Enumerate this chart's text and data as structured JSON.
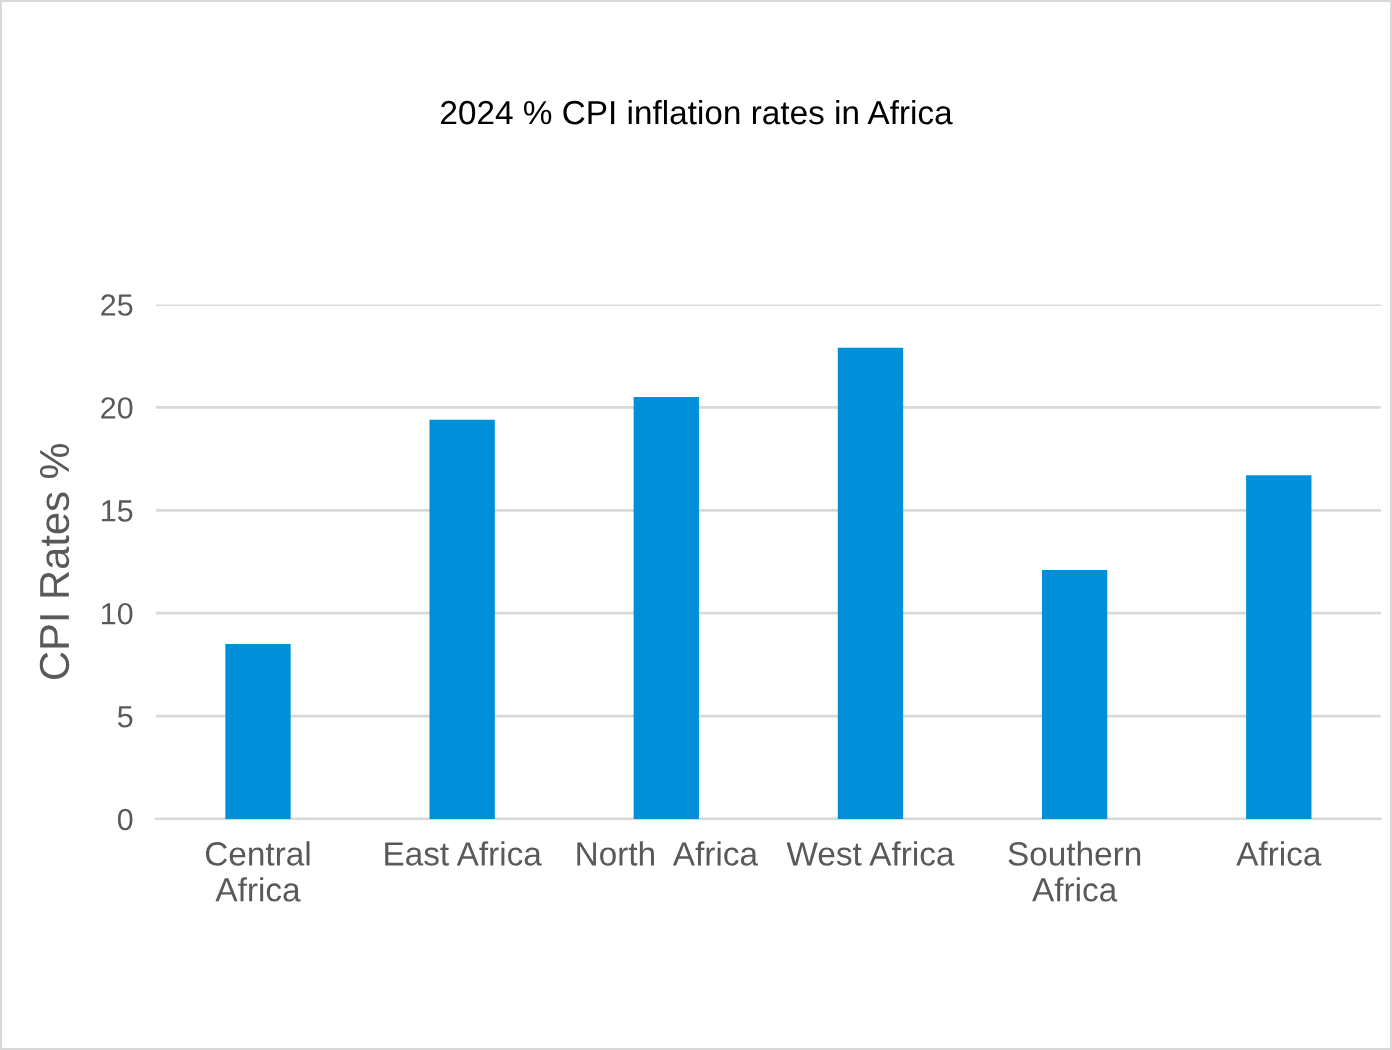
{
  "chart_data": {
    "type": "bar",
    "title": "2024 % CPI inflation rates in Africa",
    "ylabel": "CPI Rates %",
    "categories": [
      "Central\nAfrica",
      "East Africa",
      "North  Africa",
      "West Africa",
      "Southern\nAfrica",
      "Africa"
    ],
    "values": [
      8.5,
      19.4,
      20.5,
      22.9,
      12.1,
      16.7
    ],
    "color": "#0090da",
    "ylim": [
      0,
      25
    ],
    "yticks": [
      0,
      5,
      10,
      15,
      20,
      25
    ],
    "grid": "y"
  }
}
